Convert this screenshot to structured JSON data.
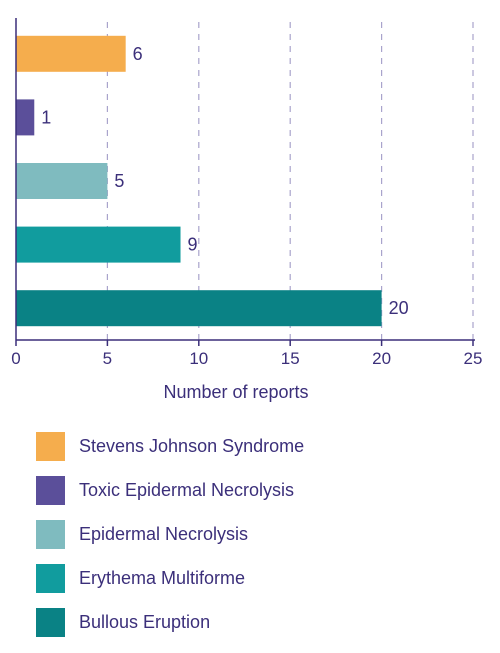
{
  "chart_data": {
    "type": "bar",
    "orientation": "horizontal",
    "categories": [
      "Stevens Johnson Syndrome",
      "Toxic Epidermal Necrolysis",
      "Epidermal Necrolysis",
      "Erythema Multiforme",
      "Bullous Eruption"
    ],
    "values": [
      6,
      1,
      5,
      9,
      20
    ],
    "colors": [
      "#f5ad4d",
      "#5b4f9a",
      "#7fbbbf",
      "#119c9e",
      "#0a8285"
    ],
    "xlabel": "Number of reports",
    "xlim": [
      0,
      25
    ],
    "xticks": [
      0,
      5,
      10,
      15,
      20,
      25
    ],
    "grid": "vertical dashed",
    "legend_position": "bottom"
  }
}
